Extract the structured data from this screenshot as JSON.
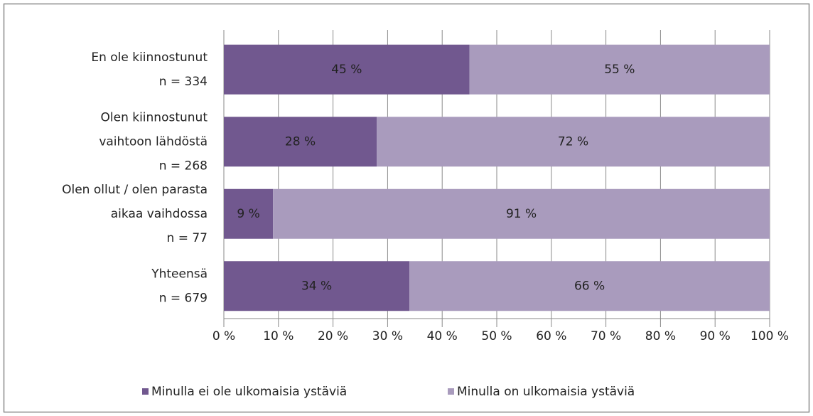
{
  "chart_data": {
    "type": "stacked-bar-horizontal",
    "categories": [
      [
        "En ole kiinnostunut",
        "n = 334"
      ],
      [
        "Olen kiinnostunut",
        "vaihtoon lähdöstä",
        "n = 268"
      ],
      [
        "Olen ollut / olen parasta",
        "aikaa vaihdossa",
        "n = 77"
      ],
      [
        "Yhteensä",
        "n = 679"
      ]
    ],
    "series": [
      {
        "name": "Minulla ei ole ulkomaisia ystäviä",
        "color": "#71588f",
        "values": [
          45,
          28,
          9,
          34
        ],
        "value_labels": [
          "45 %",
          "28 %",
          "9 %",
          "34 %"
        ]
      },
      {
        "name": "Minulla on ulkomaisia ystäviä",
        "color": "#a99bbd",
        "values": [
          55,
          72,
          91,
          66
        ],
        "value_labels": [
          "55 %",
          "72 %",
          "91 %",
          "66 %"
        ]
      }
    ],
    "xlim": [
      0,
      100
    ],
    "xticks": [
      {
        "value": 0,
        "label": "0 %"
      },
      {
        "value": 10,
        "label": "10 %"
      },
      {
        "value": 20,
        "label": "20 %"
      },
      {
        "value": 30,
        "label": "30 %"
      },
      {
        "value": 40,
        "label": "40 %"
      },
      {
        "value": 50,
        "label": "50 %"
      },
      {
        "value": 60,
        "label": "60 %"
      },
      {
        "value": 70,
        "label": "70 %"
      },
      {
        "value": 80,
        "label": "80 %"
      },
      {
        "value": 90,
        "label": "90 %"
      },
      {
        "value": 100,
        "label": "100 %"
      }
    ],
    "grid": true,
    "legend": "bottom"
  }
}
